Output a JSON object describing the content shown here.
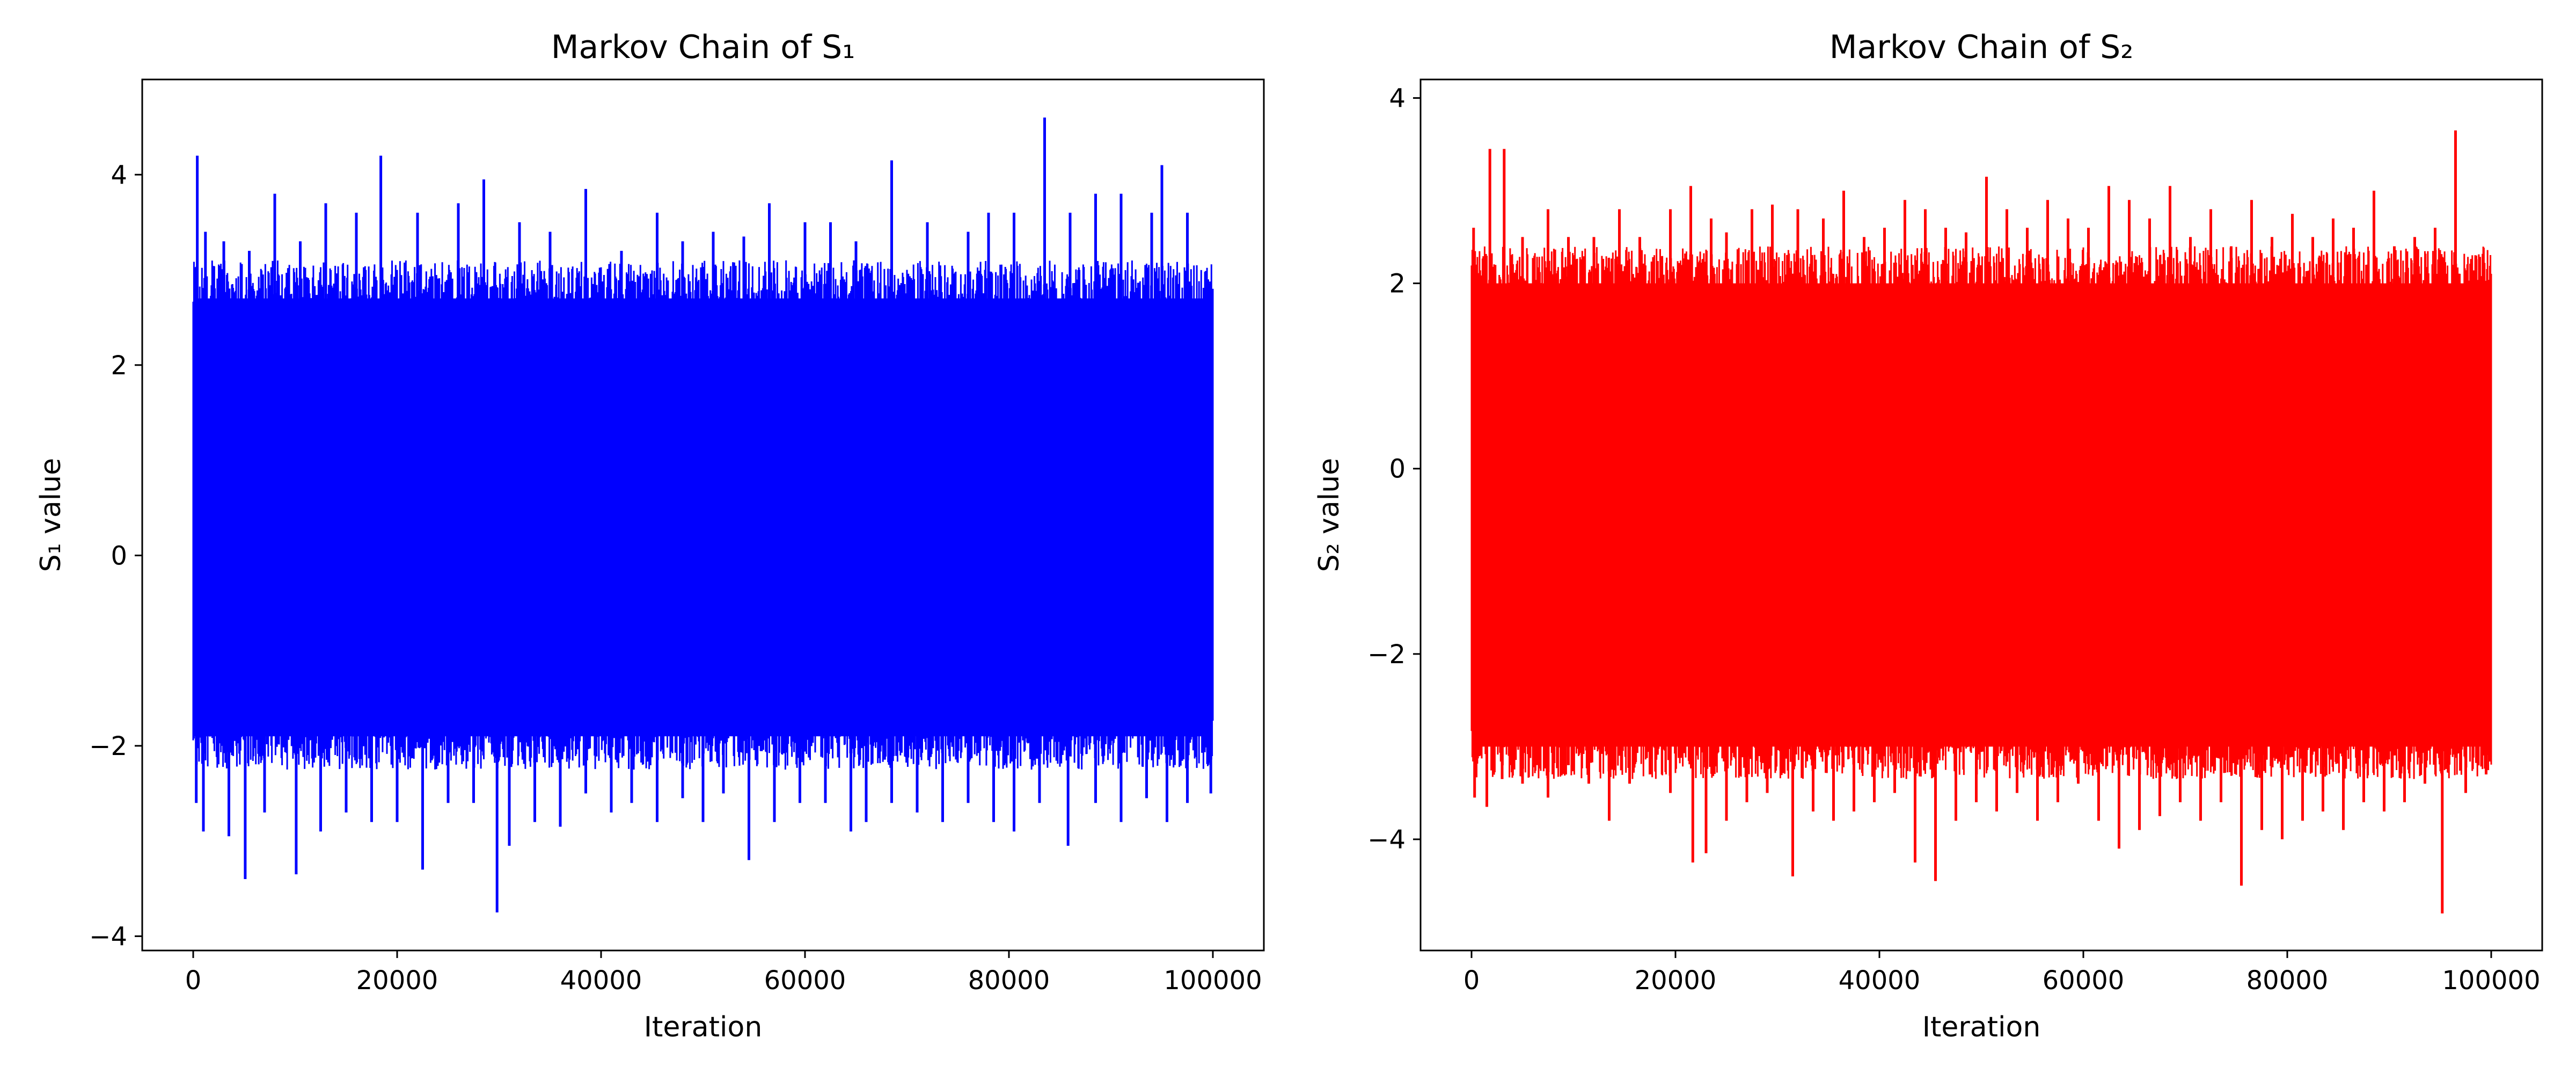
{
  "chart_data": [
    {
      "type": "line",
      "title": "Markov Chain of S₁",
      "xlabel": "Iteration",
      "ylabel": "S₁ value",
      "x_ticks": [
        0,
        20000,
        40000,
        60000,
        80000,
        100000
      ],
      "y_ticks": [
        -4,
        -2,
        0,
        2,
        4
      ],
      "xlim": [
        -5000,
        105000
      ],
      "ylim": [
        -4.15,
        5.0
      ],
      "grid": false,
      "color": "#0000ff",
      "series": [
        {
          "x_range": [
            0,
            100000
          ],
          "typical_band": [
            -1.9,
            2.7
          ],
          "upper_spikes": [
            [
              400,
              4.2
            ],
            [
              1200,
              3.4
            ],
            [
              3000,
              3.3
            ],
            [
              5500,
              3.2
            ],
            [
              8000,
              3.8
            ],
            [
              10500,
              3.3
            ],
            [
              13000,
              3.7
            ],
            [
              16000,
              3.6
            ],
            [
              18400,
              4.2
            ],
            [
              22000,
              3.6
            ],
            [
              26000,
              3.7
            ],
            [
              28500,
              3.95
            ],
            [
              32000,
              3.5
            ],
            [
              35000,
              3.4
            ],
            [
              38500,
              3.85
            ],
            [
              42000,
              3.2
            ],
            [
              45500,
              3.6
            ],
            [
              48000,
              3.3
            ],
            [
              51000,
              3.4
            ],
            [
              54000,
              3.35
            ],
            [
              56500,
              3.7
            ],
            [
              60000,
              3.5
            ],
            [
              62500,
              3.5
            ],
            [
              65000,
              3.3
            ],
            [
              68500,
              4.15
            ],
            [
              72000,
              3.5
            ],
            [
              76000,
              3.4
            ],
            [
              78000,
              3.6
            ],
            [
              80500,
              3.6
            ],
            [
              83500,
              4.6
            ],
            [
              86000,
              3.6
            ],
            [
              88500,
              3.8
            ],
            [
              91000,
              3.8
            ],
            [
              94000,
              3.6
            ],
            [
              95000,
              4.1
            ],
            [
              97500,
              3.6
            ],
            [
              99500,
              2.9
            ]
          ],
          "lower_spikes": [
            [
              300,
              -2.6
            ],
            [
              1000,
              -2.9
            ],
            [
              3500,
              -2.95
            ],
            [
              5100,
              -3.4
            ],
            [
              7000,
              -2.7
            ],
            [
              10100,
              -3.35
            ],
            [
              12500,
              -2.9
            ],
            [
              15000,
              -2.7
            ],
            [
              17500,
              -2.8
            ],
            [
              20000,
              -2.8
            ],
            [
              22500,
              -3.3
            ],
            [
              25000,
              -2.6
            ],
            [
              27500,
              -2.6
            ],
            [
              29800,
              -3.75
            ],
            [
              31000,
              -3.05
            ],
            [
              33500,
              -2.8
            ],
            [
              36000,
              -2.85
            ],
            [
              38500,
              -2.5
            ],
            [
              41000,
              -2.7
            ],
            [
              43000,
              -2.6
            ],
            [
              45500,
              -2.8
            ],
            [
              48000,
              -2.55
            ],
            [
              50000,
              -2.8
            ],
            [
              52000,
              -2.5
            ],
            [
              54500,
              -3.2
            ],
            [
              57000,
              -2.8
            ],
            [
              59500,
              -2.6
            ],
            [
              62000,
              -2.6
            ],
            [
              64500,
              -2.9
            ],
            [
              66000,
              -2.8
            ],
            [
              68500,
              -2.6
            ],
            [
              71000,
              -2.7
            ],
            [
              73500,
              -2.8
            ],
            [
              76000,
              -2.6
            ],
            [
              78500,
              -2.8
            ],
            [
              80500,
              -2.9
            ],
            [
              83000,
              -2.6
            ],
            [
              85800,
              -3.05
            ],
            [
              88500,
              -2.6
            ],
            [
              91000,
              -2.8
            ],
            [
              93500,
              -2.55
            ],
            [
              95500,
              -2.8
            ],
            [
              97500,
              -2.6
            ],
            [
              99800,
              -2.5
            ]
          ]
        }
      ]
    },
    {
      "type": "line",
      "title": "Markov Chain of S₂",
      "xlabel": "Iteration",
      "ylabel": "S₂ value",
      "x_ticks": [
        0,
        20000,
        40000,
        60000,
        80000,
        100000
      ],
      "y_ticks": [
        -4,
        -2,
        0,
        2,
        4
      ],
      "xlim": [
        -5000,
        105000
      ],
      "ylim": [
        -5.2,
        4.2
      ],
      "grid": false,
      "color": "#ff0000",
      "series": [
        {
          "x_range": [
            0,
            100000
          ],
          "typical_band": [
            -3.0,
            2.0
          ],
          "upper_spikes": [
            [
              200,
              2.6
            ],
            [
              1800,
              3.45
            ],
            [
              3200,
              3.45
            ],
            [
              5000,
              2.5
            ],
            [
              7500,
              2.8
            ],
            [
              9500,
              2.5
            ],
            [
              12000,
              2.5
            ],
            [
              14500,
              2.8
            ],
            [
              16500,
              2.5
            ],
            [
              19500,
              2.8
            ],
            [
              21500,
              3.05
            ],
            [
              23500,
              2.7
            ],
            [
              25000,
              2.55
            ],
            [
              27500,
              2.8
            ],
            [
              29500,
              2.85
            ],
            [
              32000,
              2.8
            ],
            [
              34500,
              2.7
            ],
            [
              36500,
              3.0
            ],
            [
              38500,
              2.5
            ],
            [
              40500,
              2.6
            ],
            [
              42500,
              2.9
            ],
            [
              44500,
              2.8
            ],
            [
              46500,
              2.6
            ],
            [
              48500,
              2.55
            ],
            [
              50500,
              3.15
            ],
            [
              52500,
              2.8
            ],
            [
              54500,
              2.6
            ],
            [
              56500,
              2.9
            ],
            [
              58500,
              2.7
            ],
            [
              60500,
              2.6
            ],
            [
              62500,
              3.05
            ],
            [
              64500,
              2.9
            ],
            [
              66500,
              2.7
            ],
            [
              68500,
              3.05
            ],
            [
              70500,
              2.5
            ],
            [
              72500,
              2.8
            ],
            [
              74500,
              2.4
            ],
            [
              76500,
              2.9
            ],
            [
              78500,
              2.5
            ],
            [
              80500,
              2.75
            ],
            [
              82500,
              2.5
            ],
            [
              84500,
              2.7
            ],
            [
              86500,
              2.6
            ],
            [
              88500,
              3.0
            ],
            [
              90500,
              2.4
            ],
            [
              92500,
              2.5
            ],
            [
              94500,
              2.6
            ],
            [
              96500,
              3.65
            ],
            [
              98500,
              2.3
            ]
          ],
          "lower_spikes": [
            [
              300,
              -3.55
            ],
            [
              1500,
              -3.65
            ],
            [
              3000,
              -3.35
            ],
            [
              5000,
              -3.4
            ],
            [
              7500,
              -3.55
            ],
            [
              9500,
              -3.2
            ],
            [
              11500,
              -3.4
            ],
            [
              13500,
              -3.8
            ],
            [
              15500,
              -3.4
            ],
            [
              17500,
              -3.3
            ],
            [
              19500,
              -3.5
            ],
            [
              21700,
              -4.25
            ],
            [
              23000,
              -4.15
            ],
            [
              25000,
              -3.8
            ],
            [
              27000,
              -3.6
            ],
            [
              29000,
              -3.5
            ],
            [
              31500,
              -4.4
            ],
            [
              33500,
              -3.7
            ],
            [
              35500,
              -3.8
            ],
            [
              37500,
              -3.7
            ],
            [
              39500,
              -3.6
            ],
            [
              41500,
              -3.5
            ],
            [
              43500,
              -4.25
            ],
            [
              45500,
              -4.45
            ],
            [
              47500,
              -3.8
            ],
            [
              49500,
              -3.6
            ],
            [
              51500,
              -3.7
            ],
            [
              53500,
              -3.5
            ],
            [
              55500,
              -3.8
            ],
            [
              57500,
              -3.6
            ],
            [
              59500,
              -3.4
            ],
            [
              61500,
              -3.8
            ],
            [
              63500,
              -4.1
            ],
            [
              65500,
              -3.9
            ],
            [
              67500,
              -3.75
            ],
            [
              69500,
              -3.6
            ],
            [
              71500,
              -3.8
            ],
            [
              73500,
              -3.6
            ],
            [
              75500,
              -4.5
            ],
            [
              77500,
              -3.9
            ],
            [
              79500,
              -4.0
            ],
            [
              81500,
              -3.8
            ],
            [
              83500,
              -3.7
            ],
            [
              85500,
              -3.9
            ],
            [
              87500,
              -3.6
            ],
            [
              89500,
              -3.7
            ],
            [
              91500,
              -3.6
            ],
            [
              93500,
              -3.4
            ],
            [
              95200,
              -4.8
            ],
            [
              97500,
              -3.5
            ],
            [
              99500,
              -3.3
            ]
          ]
        }
      ]
    }
  ]
}
